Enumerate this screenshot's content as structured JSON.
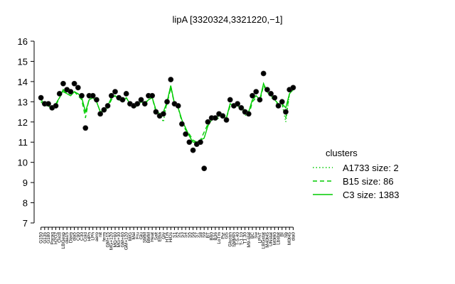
{
  "chart_data": {
    "type": "line",
    "title": "lipA [3320324,3321220,−1]",
    "categories": [
      "G150",
      "G135",
      "G180",
      "Paraq",
      "H2O2",
      "Oxctl",
      "LBGexp",
      "dia15",
      "Diam",
      "dia5",
      "C90",
      "C30",
      "Cold",
      "HPh",
      "LPh",
      "aero",
      "nit",
      "ferm",
      "GM+15",
      "MG+120",
      "MG+60",
      "MG+30",
      "GM+60",
      "GM+120",
      "M/G",
      "Mal",
      "Fru",
      "Glu",
      "SMM",
      "BMM",
      "Heat",
      "Salt",
      "Etha",
      "Gly",
      "HTm",
      "HiOs",
      "S1",
      "S2",
      "S3",
      "S4",
      "S5",
      "S6",
      "S7",
      "S8",
      "S9",
      "BT",
      "B60",
      "B36",
      "LoTm",
      "Pyr",
      "GS",
      "Glucon",
      "SMMPi",
      "T-5.40",
      "T-1.10",
      "T1.30",
      "M9-stat",
      "BC",
      "Sw",
      "LPhT",
      "LBGstat",
      "M40t45",
      "UNstat",
      "M0t90",
      "Lbstat",
      "BI",
      "Sb",
      "M0t45",
      "dia0"
    ],
    "values": [
      13.2,
      12.9,
      12.9,
      12.7,
      12.8,
      13.4,
      13.9,
      13.6,
      13.5,
      13.9,
      13.7,
      13.3,
      11.7,
      13.3,
      13.3,
      13.1,
      12.4,
      12.6,
      12.8,
      13.3,
      13.5,
      13.2,
      13.1,
      13.4,
      12.9,
      12.8,
      12.9,
      13.1,
      12.9,
      13.3,
      13.3,
      12.5,
      12.3,
      12.4,
      13.0,
      14.1,
      12.9,
      12.8,
      11.9,
      11.4,
      11.0,
      10.6,
      10.9,
      11.0,
      9.7,
      12.0,
      12.2,
      12.2,
      12.4,
      12.3,
      12.1,
      13.1,
      12.8,
      12.9,
      12.7,
      12.5,
      12.4,
      13.3,
      13.5,
      13.1,
      14.4,
      13.6,
      13.4,
      13.2,
      12.8,
      13.0,
      12.5,
      13.6,
      13.7
    ],
    "point_color": "#000000",
    "legend_title": "clusters",
    "legend": "right",
    "series": [
      {
        "name": "A1733 size: 2",
        "color": "#00cc00",
        "linestyle": "dotted",
        "values": [
          13.1,
          12.9,
          12.8,
          12.7,
          12.9,
          13.2,
          13.6,
          13.4,
          13.3,
          13.5,
          13.4,
          13.2,
          12.5,
          13.1,
          13.2,
          13.0,
          12.5,
          12.6,
          12.8,
          13.2,
          13.3,
          13.1,
          13.0,
          13.2,
          12.9,
          12.8,
          12.9,
          13.0,
          12.9,
          13.1,
          13.2,
          12.6,
          12.4,
          12.0,
          13.0,
          13.8,
          12.9,
          12.7,
          12.1,
          11.7,
          11.3,
          11.0,
          11.0,
          11.1,
          11.2,
          11.8,
          12.1,
          12.2,
          12.3,
          12.3,
          12.2,
          12.9,
          12.8,
          12.8,
          12.7,
          12.3,
          12.5,
          13.1,
          13.3,
          13.1,
          13.9,
          13.5,
          13.3,
          13.1,
          12.9,
          12.9,
          12.0,
          13.4,
          13.6
        ]
      },
      {
        "name": "B15 size: 86",
        "color": "#00cc00",
        "linestyle": "dashed",
        "values": [
          13.0,
          12.8,
          12.8,
          12.6,
          12.8,
          13.2,
          13.5,
          13.4,
          13.3,
          13.5,
          13.3,
          13.1,
          12.2,
          13.2,
          13.2,
          13.0,
          12.5,
          12.5,
          12.7,
          13.1,
          13.3,
          13.1,
          13.0,
          13.2,
          12.9,
          12.7,
          12.8,
          13.0,
          12.9,
          13.2,
          13.2,
          12.5,
          12.3,
          12.4,
          12.9,
          13.7,
          12.9,
          12.7,
          12.0,
          11.6,
          11.4,
          11.1,
          11.0,
          11.1,
          11.5,
          11.9,
          12.1,
          12.1,
          12.2,
          12.3,
          12.2,
          12.8,
          12.7,
          12.8,
          12.6,
          12.5,
          12.3,
          13.0,
          13.2,
          13.0,
          13.8,
          13.5,
          13.2,
          13.1,
          12.8,
          12.9,
          12.2,
          13.4,
          13.6
        ]
      },
      {
        "name": "C3 size: 1383",
        "color": "#00cc00",
        "linestyle": "solid",
        "values": [
          13.1,
          12.9,
          12.8,
          12.7,
          12.9,
          13.2,
          13.6,
          13.4,
          13.3,
          13.5,
          13.4,
          13.2,
          12.5,
          13.1,
          13.2,
          13.0,
          12.5,
          12.6,
          12.8,
          13.2,
          13.3,
          13.1,
          13.0,
          13.2,
          12.9,
          12.8,
          12.9,
          13.0,
          12.9,
          13.1,
          13.2,
          12.6,
          12.4,
          12.5,
          13.0,
          13.8,
          12.9,
          12.7,
          12.1,
          11.7,
          11.3,
          11.0,
          11.0,
          11.1,
          11.2,
          11.8,
          12.1,
          12.2,
          12.3,
          12.3,
          12.2,
          12.9,
          12.8,
          12.8,
          12.7,
          12.6,
          12.5,
          13.1,
          13.3,
          13.1,
          13.9,
          13.5,
          13.3,
          13.1,
          12.9,
          12.9,
          12.7,
          13.4,
          13.6
        ]
      }
    ],
    "ylim": [
      7,
      16
    ],
    "yticks": [
      7,
      8,
      9,
      10,
      11,
      12,
      13,
      14,
      15,
      16
    ]
  }
}
